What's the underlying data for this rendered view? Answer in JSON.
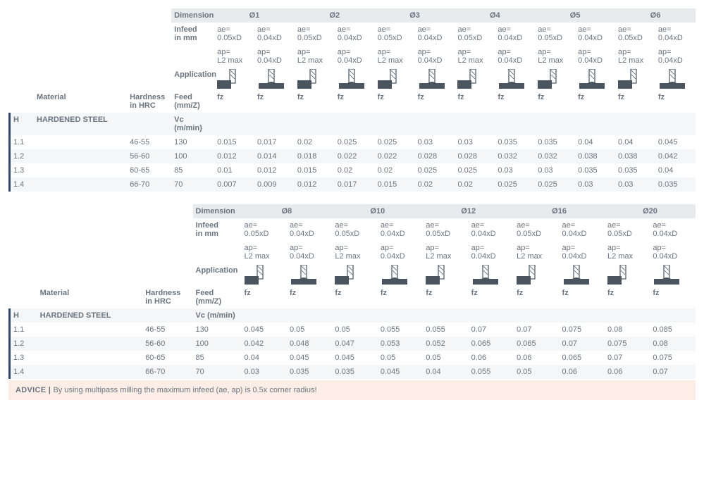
{
  "labels": {
    "dimension": "Dimension",
    "infeed": "Infeed\nin mm",
    "application": "Application",
    "material": "Material",
    "hardness": "Hardness\nin HRC",
    "feed": "Feed (mm/Z)",
    "vc": "Vc (m/min)",
    "ae1": "ae=\n0.05xD",
    "ae2": "ae=\n0.04xD",
    "ap1": "ap=\nL2 max",
    "ap2": "ap=\n0.04xD",
    "fz": "fz",
    "H": "H",
    "hardened": "HARDENED STEEL"
  },
  "colors": {
    "header_bg": "#e8ebed",
    "stripe_bg": "#f4f6f7",
    "accent_bar": "#2f4a6b",
    "text": "#6a7580",
    "icon_dark": "#4a5560",
    "advice_bg": "#fceee7"
  },
  "tables": [
    {
      "diameters": [
        "Ø1",
        "Ø2",
        "Ø3",
        "Ø4",
        "Ø5",
        "Ø6"
      ],
      "rows": [
        {
          "id": "1.1",
          "hrc": "46-55",
          "vc": "130",
          "fz": [
            "0.015",
            "0.017",
            "0.02",
            "0.025",
            "0.025",
            "0.03",
            "0.03",
            "0.035",
            "0.035",
            "0.04",
            "0.04",
            "0.045"
          ]
        },
        {
          "id": "1.2",
          "hrc": "56-60",
          "vc": "100",
          "fz": [
            "0.012",
            "0.014",
            "0.018",
            "0.022",
            "0.022",
            "0.028",
            "0.028",
            "0.032",
            "0.032",
            "0.038",
            "0.038",
            "0.042"
          ]
        },
        {
          "id": "1.3",
          "hrc": "60-65",
          "vc": "85",
          "fz": [
            "0.01",
            "0.012",
            "0.015",
            "0.02",
            "0.02",
            "0.025",
            "0.025",
            "0.03",
            "0.03",
            "0.035",
            "0.035",
            "0.04"
          ]
        },
        {
          "id": "1.4",
          "hrc": "66-70",
          "vc": "70",
          "fz": [
            "0.007",
            "0.009",
            "0.012",
            "0.017",
            "0.015",
            "0.02",
            "0.02",
            "0.025",
            "0.025",
            "0.03",
            "0.03",
            "0.035"
          ]
        }
      ]
    },
    {
      "diameters": [
        "Ø8",
        "Ø10",
        "Ø12",
        "Ø16",
        "Ø20"
      ],
      "rows": [
        {
          "id": "1.1",
          "hrc": "46-55",
          "vc": "130",
          "fz": [
            "0.045",
            "0.05",
            "0.05",
            "0.055",
            "0.055",
            "0.07",
            "0.07",
            "0.075",
            "0.08",
            "0.085"
          ]
        },
        {
          "id": "1.2",
          "hrc": "56-60",
          "vc": "100",
          "fz": [
            "0.042",
            "0.048",
            "0.047",
            "0.053",
            "0.052",
            "0.065",
            "0.065",
            "0.07",
            "0.075",
            "0.08"
          ]
        },
        {
          "id": "1.3",
          "hrc": "60-65",
          "vc": "85",
          "fz": [
            "0.04",
            "0.045",
            "0.045",
            "0.05",
            "0.05",
            "0.06",
            "0.06",
            "0.065",
            "0.07",
            "0.075"
          ]
        },
        {
          "id": "1.4",
          "hrc": "66-70",
          "vc": "70",
          "fz": [
            "0.03",
            "0.035",
            "0.035",
            "0.045",
            "0.04",
            "0.055",
            "0.05",
            "0.06",
            "0.06",
            "0.07"
          ]
        }
      ]
    }
  ],
  "advice": {
    "prefix": "ADVICE | ",
    "text": "By using multipass milling the maximum infeed (ae, ap) is 0.5x corner radius!"
  }
}
